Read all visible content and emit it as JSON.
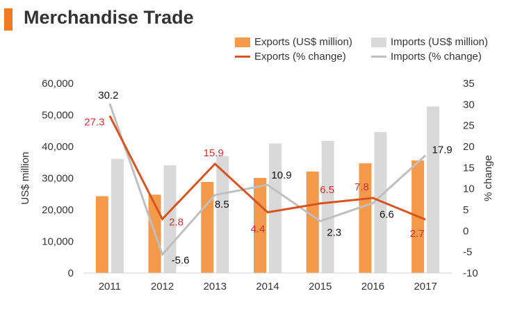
{
  "header": {
    "title": "Merchandise Trade",
    "accent_color": "#F07A22"
  },
  "legend": {
    "items": [
      {
        "label": "Exports (US$ million)",
        "kind": "box",
        "color": "#F59A4A"
      },
      {
        "label": "Imports (US$ million)",
        "kind": "box",
        "color": "#D9D9D9"
      },
      {
        "label": "Exports (% change)",
        "kind": "line",
        "color": "#D9531E"
      },
      {
        "label": "Imports (% change)",
        "kind": "line",
        "color": "#BFBFBF"
      }
    ]
  },
  "chart_data": {
    "type": "bar",
    "categories": [
      "2011",
      "2012",
      "2013",
      "2014",
      "2015",
      "2016",
      "2017"
    ],
    "ylabel": "US$ million",
    "y2label": "% change",
    "ylim": [
      0,
      60000
    ],
    "y2lim": [
      -10,
      35
    ],
    "yticks": [
      "0",
      "10,000",
      "20,000",
      "30,000",
      "40,000",
      "50,000",
      "60,000"
    ],
    "y2ticks": [
      "-10",
      "-5",
      "0",
      "5",
      "10",
      "15",
      "20",
      "25",
      "30",
      "35"
    ],
    "grid": false,
    "legend_position": "top-right",
    "bar_series": [
      {
        "name": "Exports (US$ million)",
        "color": "#F59A4A",
        "values": [
          24300,
          24800,
          28800,
          30100,
          32100,
          34700,
          35600
        ]
      },
      {
        "name": "Imports (US$ million)",
        "color": "#D9D9D9",
        "values": [
          36100,
          34100,
          37000,
          41000,
          41800,
          44600,
          52700
        ]
      }
    ],
    "line_series": [
      {
        "name": "Exports (% change)",
        "color": "#D9531E",
        "label_color": "#D32F2F",
        "values": [
          27.3,
          2.8,
          15.9,
          4.4,
          6.5,
          7.8,
          2.7
        ],
        "labels": [
          "27.3",
          "2.8",
          "15.9",
          "4.4",
          "6.5",
          "7.8",
          "2.7"
        ]
      },
      {
        "name": "Imports (% change)",
        "color": "#BFBFBF",
        "label_color": "#111111",
        "values": [
          30.2,
          -5.6,
          8.5,
          10.9,
          2.3,
          6.6,
          17.9
        ],
        "labels": [
          "30.2",
          "-5.6",
          "8.5",
          "10.9",
          "2.3",
          "6.6",
          "17.9"
        ]
      }
    ]
  }
}
